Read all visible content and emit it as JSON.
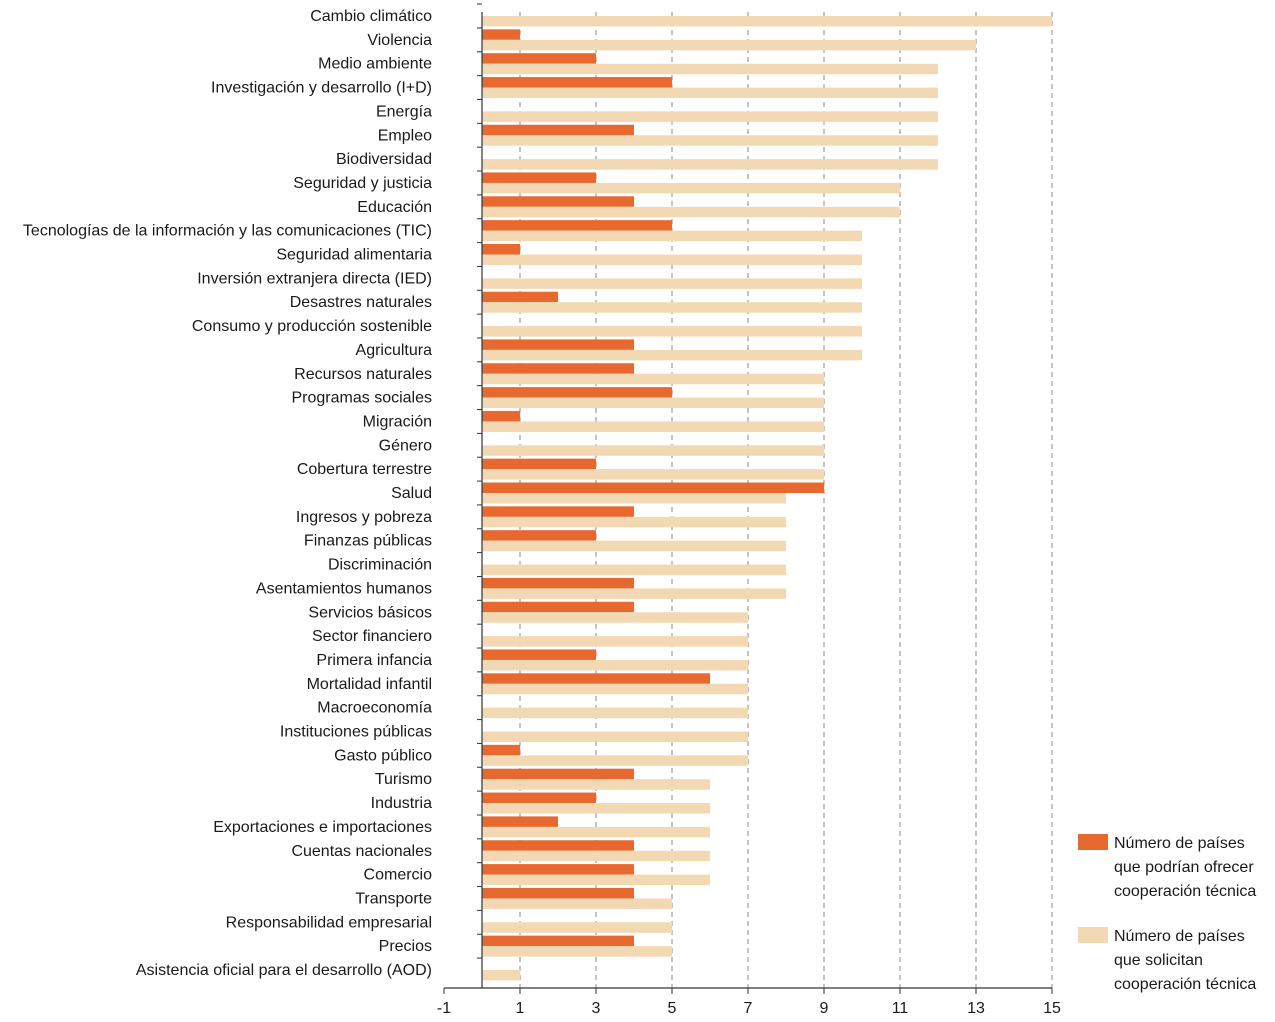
{
  "chart_data": {
    "type": "bar",
    "orientation": "horizontal",
    "title": "",
    "xlabel": "",
    "ylabel": "",
    "xlim": [
      -1,
      15
    ],
    "xticks": [
      -1,
      1,
      3,
      5,
      7,
      9,
      11,
      13,
      15
    ],
    "grid": "vertical dashed",
    "legend_position": "right-bottom",
    "categories": [
      "Cambio climático",
      "Violencia",
      "Medio ambiente",
      "Investigación y desarrollo (I+D)",
      "Energía",
      "Empleo",
      "Biodiversidad",
      "Seguridad y justicia",
      "Educación",
      "Tecnologías de la información y las comunicaciones (TIC)",
      "Seguridad alimentaria",
      "Inversión extranjera directa (IED)",
      "Desastres naturales",
      "Consumo y producción sostenible",
      "Agricultura",
      "Recursos naturales",
      "Programas sociales",
      "Migración",
      "Género",
      "Cobertura terrestre",
      "Salud",
      "Ingresos y pobreza",
      "Finanzas públicas",
      "Discriminación",
      "Asentamientos humanos",
      "Servicios básicos",
      "Sector financiero",
      "Primera infancia",
      "Mortalidad infantil",
      "Macroeconomía",
      "Instituciones públicas",
      "Gasto público",
      "Turismo",
      "Industria",
      "Exportaciones e importaciones",
      "Cuentas nacionales",
      "Comercio",
      "Transporte",
      "Responsabilidad empresarial",
      "Precios",
      "Asistencia oficial para el desarrollo (AOD)"
    ],
    "series": [
      {
        "name": "Número de países que podrían ofrecer cooperación técnica",
        "color": "#e8692f",
        "values": [
          0,
          1,
          3,
          5,
          0,
          4,
          0,
          3,
          4,
          5,
          1,
          0,
          2,
          0,
          4,
          4,
          5,
          1,
          0,
          3,
          9,
          4,
          3,
          0,
          4,
          4,
          0,
          3,
          6,
          0,
          0,
          1,
          4,
          3,
          2,
          4,
          4,
          4,
          0,
          4,
          0
        ]
      },
      {
        "name": "Número de países que solicitan cooperación técnica",
        "color": "#f3d9b3",
        "values": [
          15,
          13,
          12,
          12,
          12,
          12,
          12,
          11,
          11,
          10,
          10,
          10,
          10,
          10,
          10,
          9,
          9,
          9,
          9,
          9,
          8,
          8,
          8,
          8,
          8,
          7,
          7,
          7,
          7,
          7,
          7,
          7,
          6,
          6,
          6,
          6,
          6,
          5,
          5,
          5,
          1
        ]
      }
    ],
    "legend": {
      "items": [
        {
          "lines": [
            "Número de países",
            "que podrían ofrecer",
            "cooperación técnica"
          ],
          "color": "#e8692f"
        },
        {
          "lines": [
            "Número de países",
            "que solicitan",
            "cooperación técnica"
          ],
          "color": "#f3d9b3"
        }
      ]
    }
  }
}
